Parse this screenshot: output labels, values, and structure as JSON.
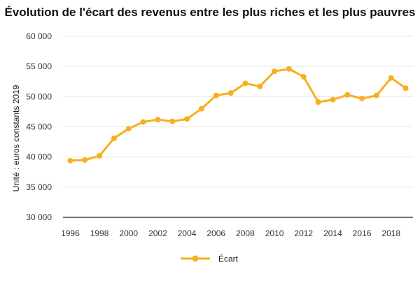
{
  "chart_data": {
    "type": "line",
    "title": "Évolution de l'écart des revenus entre les plus riches et les plus pauvres",
    "ylabel": "Unité : euros constants 2019",
    "xlabel": "",
    "ylim": [
      30000,
      60000
    ],
    "y_ticks": [
      30000,
      35000,
      40000,
      45000,
      50000,
      55000,
      60000
    ],
    "y_tick_labels": [
      "30 000",
      "35 000",
      "40 000",
      "45 000",
      "50 000",
      "55 000",
      "60 000"
    ],
    "xlim": [
      1995.5,
      2019.5
    ],
    "x_ticks": [
      1996,
      1998,
      2000,
      2002,
      2004,
      2006,
      2008,
      2010,
      2012,
      2014,
      2016,
      2018
    ],
    "x_tick_labels": [
      "1996",
      "1998",
      "2000",
      "2002",
      "2004",
      "2006",
      "2008",
      "2010",
      "2012",
      "2014",
      "2016",
      "2018"
    ],
    "grid": "horizontal",
    "legend_position": "bottom",
    "color": "#F8AF21",
    "series": [
      {
        "name": "Écart",
        "x": [
          1996,
          1997,
          1998,
          1999,
          2000,
          2001,
          2002,
          2003,
          2004,
          2005,
          2006,
          2007,
          2008,
          2009,
          2010,
          2011,
          2012,
          2013,
          2014,
          2015,
          2016,
          2017,
          2018,
          2019
        ],
        "values": [
          39400,
          39500,
          40200,
          43100,
          44700,
          45800,
          46200,
          45900,
          46300,
          48000,
          50200,
          50600,
          52200,
          51700,
          54200,
          54600,
          53300,
          49100,
          49500,
          50300,
          49700,
          50200,
          53100,
          51400
        ]
      }
    ]
  }
}
